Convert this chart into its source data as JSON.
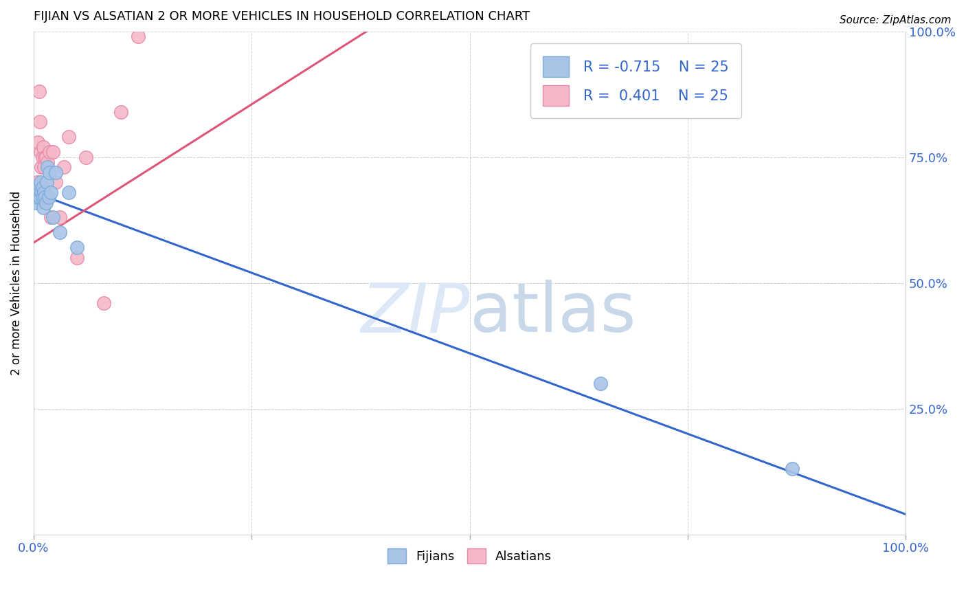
{
  "title": "FIJIAN VS ALSATIAN 2 OR MORE VEHICLES IN HOUSEHOLD CORRELATION CHART",
  "source_text": "Source: ZipAtlas.com",
  "ylabel": "2 or more Vehicles in Household",
  "xlim": [
    0,
    1
  ],
  "ylim": [
    0,
    1
  ],
  "fijian_color": "#aac4e8",
  "alsatian_color": "#f4b8c8",
  "fijian_edge_color": "#7aaad8",
  "alsatian_edge_color": "#e888a8",
  "blue_line_color": "#3366cc",
  "pink_line_color": "#dd5577",
  "watermark_color": "#dce8f5",
  "fijian_x": [
    0.003,
    0.004,
    0.005,
    0.006,
    0.007,
    0.008,
    0.009,
    0.01,
    0.01,
    0.011,
    0.012,
    0.013,
    0.014,
    0.015,
    0.016,
    0.017,
    0.018,
    0.02,
    0.022,
    0.025,
    0.03,
    0.04,
    0.05,
    0.65,
    0.87
  ],
  "fijian_y": [
    0.66,
    0.67,
    0.69,
    0.68,
    0.67,
    0.7,
    0.68,
    0.67,
    0.69,
    0.65,
    0.68,
    0.67,
    0.66,
    0.7,
    0.73,
    0.67,
    0.72,
    0.68,
    0.63,
    0.72,
    0.6,
    0.68,
    0.57,
    0.3,
    0.13
  ],
  "alsatian_x": [
    0.003,
    0.004,
    0.005,
    0.006,
    0.007,
    0.008,
    0.009,
    0.01,
    0.011,
    0.012,
    0.013,
    0.014,
    0.016,
    0.018,
    0.02,
    0.022,
    0.025,
    0.03,
    0.035,
    0.04,
    0.05,
    0.06,
    0.08,
    0.1,
    0.12
  ],
  "alsatian_y": [
    0.68,
    0.7,
    0.78,
    0.88,
    0.82,
    0.76,
    0.73,
    0.75,
    0.77,
    0.73,
    0.75,
    0.75,
    0.74,
    0.76,
    0.63,
    0.76,
    0.7,
    0.63,
    0.73,
    0.79,
    0.55,
    0.75,
    0.46,
    0.84,
    0.99
  ],
  "blue_line_x0": 0.0,
  "blue_line_y0": 0.68,
  "blue_line_x1": 1.0,
  "blue_line_y1": 0.04,
  "pink_line_x0": 0.0,
  "pink_line_y0": 0.58,
  "pink_line_x1": 0.4,
  "pink_line_y1": 1.02
}
